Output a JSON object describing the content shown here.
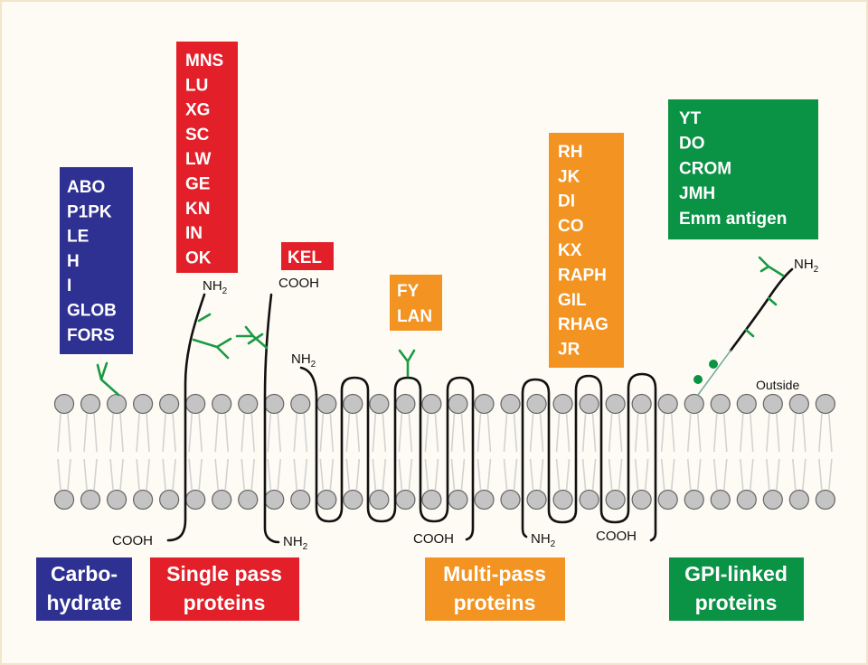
{
  "colors": {
    "carbohydrate": "#2e3192",
    "single_pass": "#e3202a",
    "multi_pass": "#f39321",
    "gpi": "#0a9245",
    "glycan": "#1a9a45",
    "background": "#fdfbf4",
    "lipid_head": "#c4c4c4"
  },
  "carbohydrate": {
    "antigens": [
      "ABO",
      "P1PK",
      "LE",
      "H",
      "I",
      "GLOB",
      "FORS"
    ],
    "caption": [
      "Carbo-",
      "hydrate"
    ]
  },
  "single_pass": {
    "antigens": [
      "MNS",
      "LU",
      "XG",
      "SC",
      "LW",
      "GE",
      "KN",
      "IN",
      "OK"
    ],
    "kel": "KEL",
    "caption": [
      "Single pass",
      "proteins"
    ]
  },
  "multi_pass": {
    "fy_lan": [
      "FY",
      "LAN"
    ],
    "antigens": [
      "RH",
      "JK",
      "DI",
      "CO",
      "KX",
      "RAPH",
      "GIL",
      "RHAG",
      "JR"
    ],
    "caption": [
      "Multi-pass",
      "proteins"
    ]
  },
  "gpi": {
    "antigens": [
      "YT",
      "DO",
      "CROM",
      "JMH",
      "Emm antigen"
    ],
    "caption": [
      "GPI-linked",
      "proteins"
    ]
  },
  "terminals": {
    "nh2": "NH",
    "sub2": "2",
    "cooh": "COOH"
  },
  "outside_label": "Outside"
}
